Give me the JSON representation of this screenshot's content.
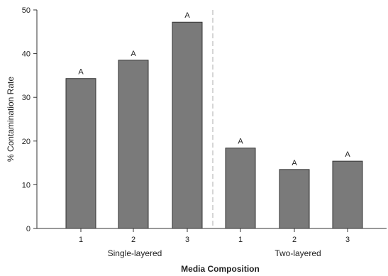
{
  "chart_data": {
    "type": "bar",
    "xlabel": "Media Composition",
    "ylabel": "% Contamination Rate",
    "ylim": [
      0,
      50
    ],
    "yticks": [
      0,
      10,
      20,
      30,
      40,
      50
    ],
    "grid": false,
    "legend": "none",
    "groups": [
      {
        "name": "Single-layered",
        "categories": [
          "1",
          "2",
          "3"
        ],
        "values": [
          34.3,
          38.5,
          47.2
        ],
        "letters": [
          "A",
          "A",
          "A"
        ]
      },
      {
        "name": "Two-layered",
        "categories": [
          "1",
          "2",
          "3"
        ],
        "values": [
          18.4,
          13.5,
          15.4
        ],
        "letters": [
          "A",
          "A",
          "A"
        ]
      }
    ],
    "colors": {
      "bar_fill": "#7a7a7a",
      "bar_stroke": "#333333",
      "axis": "#333333",
      "divider": "#bbbbbb"
    }
  }
}
